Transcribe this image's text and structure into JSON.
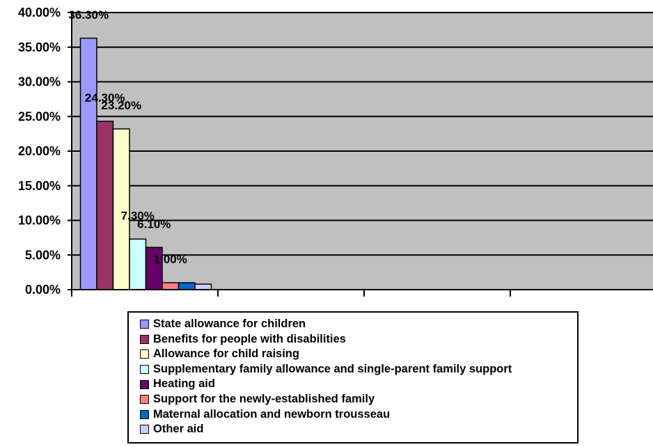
{
  "chart_data": {
    "type": "bar",
    "title": "",
    "xlabel": "",
    "ylabel": "",
    "ylim": [
      0,
      0.4
    ],
    "y_ticks": [
      "0.00%",
      "5.00%",
      "10.00%",
      "15.00%",
      "20.00%",
      "25.00%",
      "30.00%",
      "35.00%",
      "40.00%"
    ],
    "grid": true,
    "legend_position": "bottom",
    "plot_background": "#c0c0c0",
    "series": [
      {
        "name": "State allowance for children",
        "value": 0.363,
        "label": "36.30%",
        "color": "#9999ff"
      },
      {
        "name": "Benefits for people with disabilities",
        "value": 0.243,
        "label": "24.30%",
        "color": "#993366"
      },
      {
        "name": "Allowance for child raising",
        "value": 0.232,
        "label": "23.20%",
        "color": "#ffffcc"
      },
      {
        "name": "Supplementary family allowance and single-parent family support",
        "value": 0.073,
        "label": "7.30%",
        "color": "#ccffff"
      },
      {
        "name": "Heating aid",
        "value": 0.061,
        "label": "6.10%",
        "color": "#660066"
      },
      {
        "name": "Support for the newly-established family",
        "value": 0.01,
        "label": "1.00%",
        "color": "#ff8080"
      },
      {
        "name": "Maternal allocation and newborn trousseau",
        "value": 0.01,
        "label": "",
        "color": "#0066cc"
      },
      {
        "name": "Other aid",
        "value": 0.008,
        "label": "",
        "color": "#ccccff"
      }
    ]
  }
}
